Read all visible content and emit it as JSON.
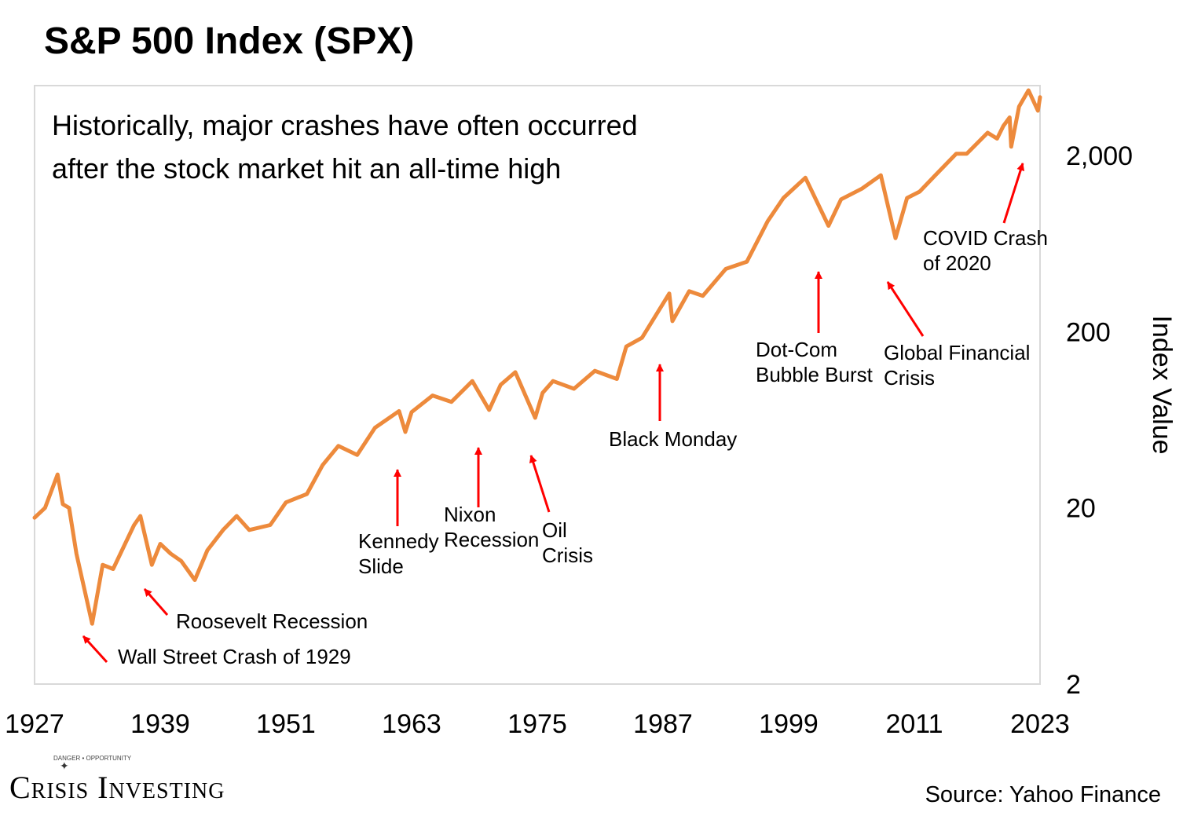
{
  "chart_data": {
    "type": "line",
    "title": "S&P 500 Index (SPX)",
    "subtitle_lines": [
      "Historically, major crashes have often occurred",
      "after the stock market hit an all-time high"
    ],
    "ylabel": "Index Value",
    "xlabel": "",
    "y_scale": "log",
    "ylim": [
      2,
      5000
    ],
    "xlim": [
      1927,
      2023
    ],
    "x_ticks": [
      "1927",
      "1939",
      "1951",
      "1963",
      "1975",
      "1987",
      "1999",
      "2011",
      "2023"
    ],
    "y_ticks": [
      {
        "value": 2,
        "label": "2"
      },
      {
        "value": 20,
        "label": "20"
      },
      {
        "value": 200,
        "label": "200"
      },
      {
        "value": 2000,
        "label": "2,000"
      }
    ],
    "grid": false,
    "legend": "none",
    "series": [
      {
        "color": "#ED8A3C",
        "x": [
          1927,
          1928,
          1929.2,
          1929.7,
          1930.3,
          1931,
          1932.5,
          1933.5,
          1934.5,
          1935.5,
          1936.5,
          1937.1,
          1938.2,
          1939,
          1940,
          1941,
          1942.3,
          1943.5,
          1945,
          1946.3,
          1947.5,
          1949.5,
          1951,
          1953,
          1954.5,
          1956,
          1957.8,
          1959.5,
          1961.8,
          1962.4,
          1963,
          1965,
          1966.8,
          1968.8,
          1970.4,
          1971.5,
          1972.9,
          1974.8,
          1975.5,
          1976.5,
          1978.5,
          1980.5,
          1982.6,
          1983.5,
          1985,
          1987.6,
          1987.9,
          1989.5,
          1990.8,
          1993,
          1995,
          1997,
          1998.5,
          2000.6,
          2002.8,
          2004,
          2006,
          2007.8,
          2009.2,
          2010.3,
          2011.5,
          2013,
          2015,
          2016,
          2018,
          2018.9,
          2019.5,
          2020.1,
          2020.25,
          2021,
          2021.9,
          2022.8,
          2023
        ],
        "values": [
          17.6,
          20,
          31,
          21,
          20,
          11,
          4.4,
          9.5,
          9,
          12,
          16,
          18,
          9.5,
          12.5,
          11,
          10,
          7.8,
          11.5,
          15,
          18,
          15,
          16,
          21.5,
          24,
          35,
          45,
          40,
          57,
          71,
          54,
          70,
          87,
          80,
          105,
          72,
          100,
          118,
          65,
          90,
          105,
          95,
          120,
          108,
          165,
          185,
          330,
          230,
          340,
          320,
          455,
          500,
          850,
          1150,
          1500,
          800,
          1130,
          1300,
          1550,
          680,
          1150,
          1250,
          1550,
          2050,
          2050,
          2700,
          2500,
          2950,
          3300,
          2250,
          3800,
          4700,
          3600,
          4300
        ]
      }
    ],
    "annotations": [
      {
        "lines": [
          "Wall Street Crash of 1929"
        ],
        "x": 1932.5,
        "y": 4.4
      },
      {
        "lines": [
          "Roosevelt Recession"
        ],
        "x": 1938.2,
        "y": 9.5
      },
      {
        "lines": [
          "Kennedy",
          "Slide"
        ],
        "x": 1962.4,
        "y": 54
      },
      {
        "lines": [
          "Nixon",
          "Recession"
        ],
        "x": 1970.4,
        "y": 72
      },
      {
        "lines": [
          "Oil",
          "Crisis"
        ],
        "x": 1974.8,
        "y": 65
      },
      {
        "lines": [
          "Black Monday"
        ],
        "x": 1987.9,
        "y": 230
      },
      {
        "lines": [
          "Dot-Com",
          "Bubble Burst"
        ],
        "x": 2002.8,
        "y": 800
      },
      {
        "lines": [
          "Global Financial",
          "Crisis"
        ],
        "x": 2009.2,
        "y": 680
      },
      {
        "lines": [
          "COVID Crash",
          "of 2020"
        ],
        "x": 2020.25,
        "y": 2250
      }
    ],
    "arrow_color": "#FF0000"
  },
  "footer": {
    "logo_tagline": "DANGER • OPPORTUNITY",
    "logo_text": "Crisis Investing",
    "source": "Source: Yahoo Finance"
  }
}
